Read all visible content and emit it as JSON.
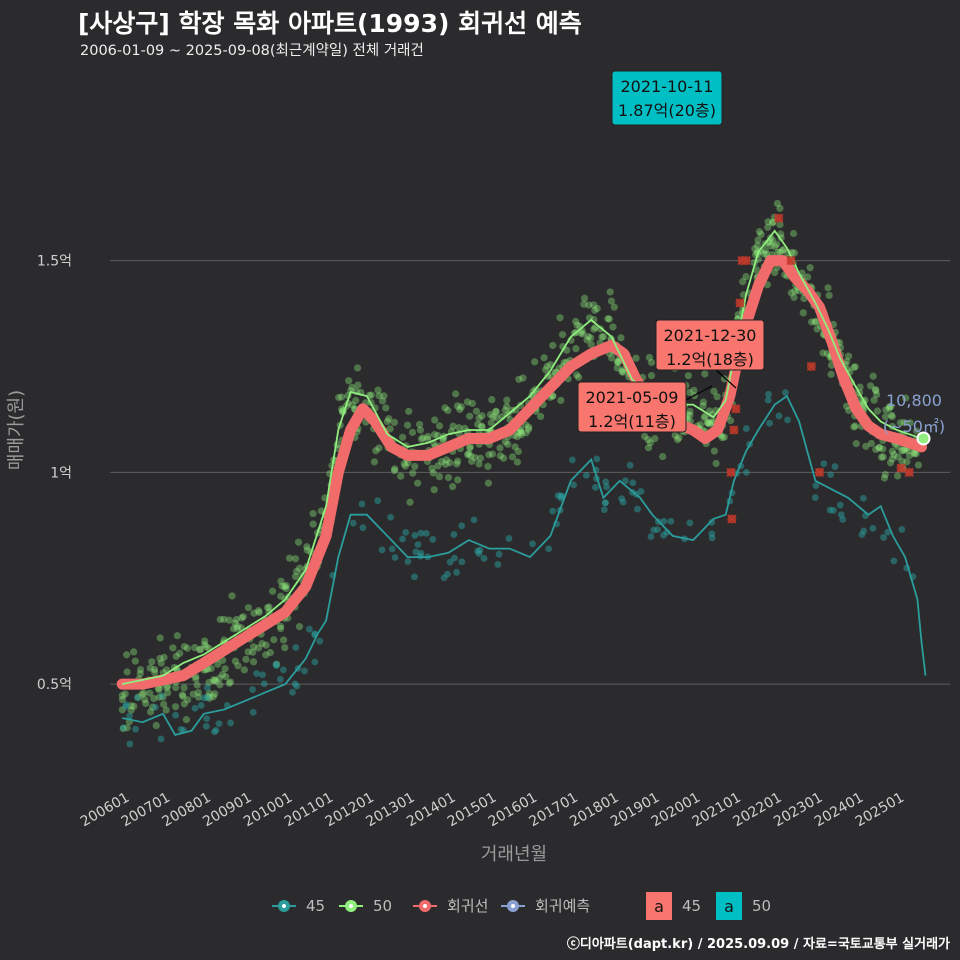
{
  "title": "[사상구] 학장 목화 아파트(1993) 회귀선 예측",
  "subtitle": "2006-01-09 ~ 2025-09-08(최근계약일) 전체 거래건",
  "footer": "ⓒ디아파트(dapt.kr) / 2025.09.09 / 자료=국토교통부 실거래가",
  "colors": {
    "background": "#2b2b2d",
    "grid": "#5e5e5e",
    "series45": "#2a9d9c",
    "series50": "#90ee7e",
    "regression": "#f26b6b",
    "forecast": "#8aa0d0",
    "label45": "#f8766d",
    "label50": "#00bfc4",
    "outlier": "#c0392b"
  },
  "chart_data": {
    "type": "scatter",
    "xlabel": "거래년월",
    "ylabel": "매매가(원)",
    "xlim": [
      2005.7,
      2026.3
    ],
    "ylim": [
      0.25,
      1.95
    ],
    "y_ticks": [
      {
        "value": 0.5,
        "label": "0.5억"
      },
      {
        "value": 1.0,
        "label": "1억"
      },
      {
        "value": 1.5,
        "label": "1.5억"
      }
    ],
    "x_ticks": [
      {
        "value": 2006,
        "label": "200601"
      },
      {
        "value": 2007,
        "label": "200701"
      },
      {
        "value": 2008,
        "label": "200801"
      },
      {
        "value": 2009,
        "label": "200901"
      },
      {
        "value": 2010,
        "label": "201001"
      },
      {
        "value": 2011,
        "label": "201101"
      },
      {
        "value": 2012,
        "label": "201201"
      },
      {
        "value": 2013,
        "label": "201301"
      },
      {
        "value": 2014,
        "label": "201401"
      },
      {
        "value": 2015,
        "label": "201501"
      },
      {
        "value": 2016,
        "label": "201601"
      },
      {
        "value": 2017,
        "label": "201701"
      },
      {
        "value": 2018,
        "label": "201801"
      },
      {
        "value": 2019,
        "label": "201901"
      },
      {
        "value": 2020,
        "label": "202001"
      },
      {
        "value": 2021,
        "label": "202101"
      },
      {
        "value": 2022,
        "label": "202201"
      },
      {
        "value": 2023,
        "label": "202301"
      },
      {
        "value": 2024,
        "label": "202401"
      },
      {
        "value": 2025,
        "label": "202501"
      }
    ],
    "series": [
      {
        "name": "50",
        "x": [
          2006.0,
          2006.5,
          2007.0,
          2007.5,
          2008.0,
          2008.5,
          2009.0,
          2009.5,
          2010.0,
          2010.5,
          2011.0,
          2011.3,
          2011.6,
          2012.0,
          2012.5,
          2013.0,
          2013.5,
          2014.0,
          2014.5,
          2015.0,
          2015.5,
          2016.0,
          2016.5,
          2017.0,
          2017.5,
          2018.0,
          2018.5,
          2019.0,
          2019.5,
          2020.0,
          2020.5,
          2020.8,
          2021.0,
          2021.3,
          2021.6,
          2022.0,
          2022.3,
          2022.6,
          2023.0,
          2023.3,
          2023.6,
          2024.0,
          2024.3,
          2024.6,
          2025.0,
          2025.3,
          2025.6
        ],
        "y": [
          0.5,
          0.51,
          0.52,
          0.55,
          0.57,
          0.6,
          0.63,
          0.66,
          0.7,
          0.77,
          0.92,
          1.1,
          1.19,
          1.18,
          1.09,
          1.06,
          1.07,
          1.09,
          1.1,
          1.1,
          1.14,
          1.18,
          1.24,
          1.32,
          1.36,
          1.32,
          1.22,
          1.18,
          1.16,
          1.16,
          1.13,
          1.17,
          1.27,
          1.42,
          1.52,
          1.57,
          1.53,
          1.47,
          1.4,
          1.34,
          1.27,
          1.2,
          1.15,
          1.12,
          1.1,
          1.09,
          1.08
        ]
      },
      {
        "name": "45",
        "x": [
          2006.0,
          2006.5,
          2007.0,
          2007.3,
          2007.7,
          2008.0,
          2008.5,
          2009.0,
          2009.5,
          2010.0,
          2010.5,
          2010.8,
          2011.0,
          2011.3,
          2011.6,
          2012.0,
          2012.5,
          2013.0,
          2013.5,
          2014.0,
          2014.5,
          2015.0,
          2015.5,
          2016.0,
          2016.5,
          2017.0,
          2017.5,
          2017.8,
          2018.2,
          2018.7,
          2019.0,
          2019.5,
          2020.0,
          2020.5,
          2020.8,
          2021.0,
          2021.3,
          2021.6,
          2022.0,
          2022.3,
          2022.6,
          2023.0,
          2023.4,
          2023.8,
          2024.3,
          2024.6,
          2024.9,
          2025.2,
          2025.5,
          2025.6,
          2025.7
        ],
        "y": [
          0.42,
          0.41,
          0.43,
          0.38,
          0.39,
          0.43,
          0.44,
          0.46,
          0.48,
          0.5,
          0.56,
          0.62,
          0.65,
          0.8,
          0.9,
          0.9,
          0.85,
          0.8,
          0.8,
          0.81,
          0.84,
          0.82,
          0.82,
          0.8,
          0.85,
          0.98,
          1.03,
          0.94,
          0.98,
          0.94,
          0.9,
          0.85,
          0.84,
          0.89,
          0.9,
          0.98,
          1.05,
          1.1,
          1.16,
          1.18,
          1.12,
          0.98,
          0.96,
          0.94,
          0.9,
          0.92,
          0.85,
          0.8,
          0.7,
          0.6,
          0.52
        ]
      },
      {
        "name": "회귀선",
        "x": [
          2006.0,
          2006.5,
          2007.0,
          2007.5,
          2008.0,
          2008.5,
          2009.0,
          2009.5,
          2010.0,
          2010.5,
          2011.0,
          2011.3,
          2011.6,
          2011.9,
          2012.2,
          2012.6,
          2013.0,
          2013.5,
          2014.0,
          2014.5,
          2015.0,
          2015.5,
          2016.0,
          2016.5,
          2017.0,
          2017.5,
          2018.0,
          2018.3,
          2018.6,
          2019.0,
          2019.5,
          2020.0,
          2020.3,
          2020.6,
          2020.9,
          2021.1,
          2021.3,
          2021.6,
          2021.9,
          2022.2,
          2022.5,
          2022.8,
          2023.1,
          2023.4,
          2023.7,
          2024.0,
          2024.3,
          2024.6,
          2025.0,
          2025.3,
          2025.6
        ],
        "y": [
          0.5,
          0.5,
          0.51,
          0.52,
          0.55,
          0.58,
          0.61,
          0.64,
          0.67,
          0.73,
          0.85,
          1.0,
          1.1,
          1.15,
          1.12,
          1.06,
          1.04,
          1.04,
          1.06,
          1.08,
          1.08,
          1.1,
          1.15,
          1.2,
          1.25,
          1.28,
          1.3,
          1.28,
          1.22,
          1.16,
          1.12,
          1.1,
          1.08,
          1.1,
          1.18,
          1.27,
          1.35,
          1.44,
          1.5,
          1.5,
          1.46,
          1.43,
          1.39,
          1.31,
          1.22,
          1.15,
          1.11,
          1.09,
          1.08,
          1.07,
          1.06
        ]
      }
    ],
    "outliers": [
      {
        "x": 2020.93,
        "y": 1.0
      },
      {
        "x": 2020.95,
        "y": 0.89
      },
      {
        "x": 2021.0,
        "y": 1.1
      },
      {
        "x": 2021.05,
        "y": 1.15
      },
      {
        "x": 2021.15,
        "y": 1.4
      },
      {
        "x": 2021.2,
        "y": 1.5
      },
      {
        "x": 2021.3,
        "y": 1.5
      },
      {
        "x": 2022.1,
        "y": 1.6
      },
      {
        "x": 2022.4,
        "y": 1.5
      },
      {
        "x": 2022.9,
        "y": 1.25
      },
      {
        "x": 2023.1,
        "y": 1.0
      },
      {
        "x": 2025.1,
        "y": 1.01
      },
      {
        "x": 2025.3,
        "y": 1.0
      }
    ],
    "last_point": {
      "x": 2025.65,
      "y": 1.08
    },
    "annotations": [
      {
        "date": "2021-10-11",
        "value": "1.87억(20층)",
        "x": 2021.78,
        "y": 1.87,
        "series": "50"
      },
      {
        "date": "2021-12-30",
        "value": "1.2억(18층)",
        "x": 2022.0,
        "y": 1.2,
        "series": "45"
      },
      {
        "date": "2021-05-09",
        "value": "1.2억(11층)",
        "x": 2021.35,
        "y": 1.2,
        "series": "45"
      }
    ],
    "side_label": {
      "price": "10,800",
      "area": "(~50㎡)"
    },
    "legend": {
      "items": [
        "45",
        "50",
        "회귀선",
        "회귀예측"
      ],
      "label_boxes": [
        {
          "glyph": "a",
          "text": "45"
        },
        {
          "glyph": "a",
          "text": "50"
        }
      ]
    }
  }
}
